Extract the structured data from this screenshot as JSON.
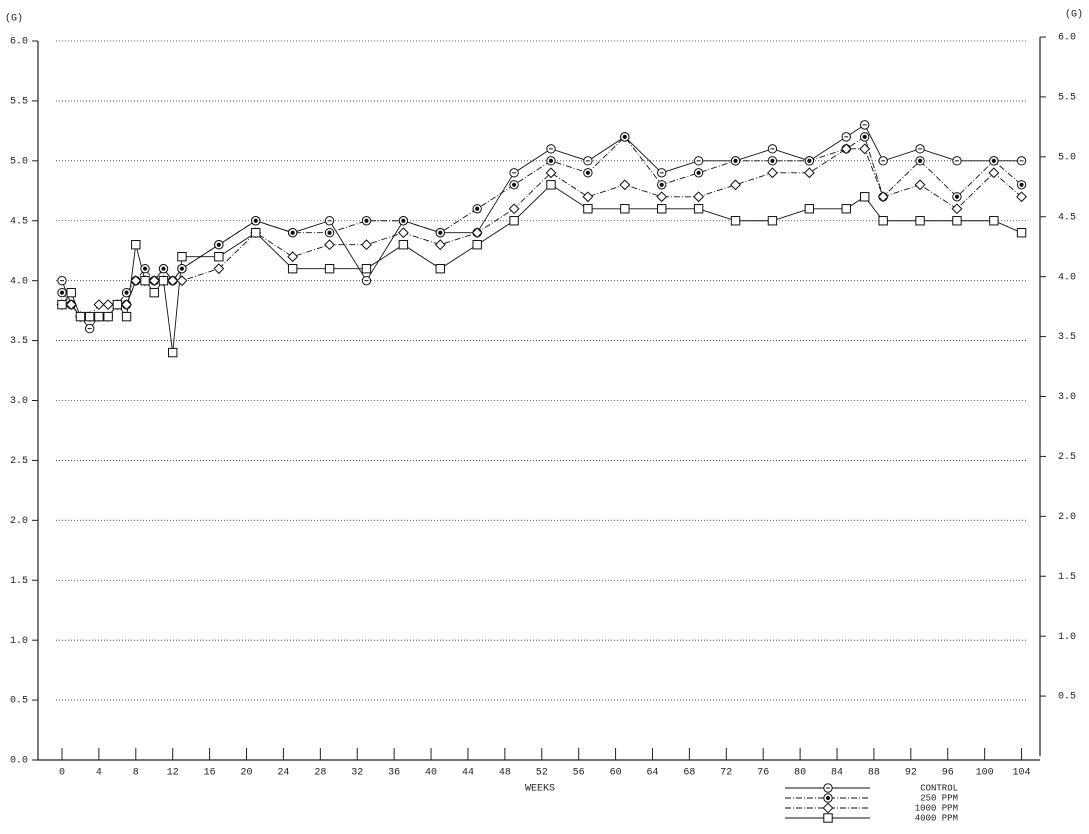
{
  "chart_data": {
    "type": "line",
    "ylabel": "(G)",
    "y2label": "(G)",
    "xlabel": "WEEKS",
    "x": [
      0,
      1,
      2,
      3,
      4,
      5,
      6,
      7,
      8,
      9,
      10,
      11,
      12,
      13,
      17,
      21,
      25,
      29,
      33,
      37,
      41,
      45,
      49,
      53,
      57,
      61,
      65,
      69,
      73,
      77,
      81,
      85,
      87,
      89,
      93,
      97,
      101,
      104
    ],
    "series": [
      {
        "name": "CONTROL",
        "color": "#111111",
        "marker": "circle-dash",
        "dash": "solid",
        "values": [
          4.0,
          3.8,
          3.7,
          3.6,
          3.7,
          3.7,
          3.8,
          3.8,
          4.0,
          4.0,
          4.0,
          4.1,
          4.0,
          4.1,
          4.3,
          4.5,
          4.4,
          4.5,
          4.0,
          4.5,
          4.4,
          4.4,
          4.9,
          5.1,
          5.0,
          5.2,
          4.9,
          5.0,
          5.0,
          5.1,
          5.0,
          5.2,
          5.3,
          5.0,
          5.1,
          5.0,
          5.0,
          5.0
        ]
      },
      {
        "name": "250 PPM",
        "color": "#111111",
        "marker": "circle-dot",
        "dash": "dashdot",
        "values": [
          3.9,
          3.8,
          3.7,
          3.7,
          3.7,
          3.7,
          3.8,
          3.9,
          4.0,
          4.1,
          4.0,
          4.1,
          4.0,
          4.1,
          4.3,
          4.5,
          4.4,
          4.4,
          4.5,
          4.5,
          4.4,
          4.6,
          4.8,
          5.0,
          4.9,
          5.2,
          4.8,
          4.9,
          5.0,
          5.0,
          5.0,
          5.1,
          5.2,
          4.7,
          5.0,
          4.7,
          5.0,
          4.8
        ]
      },
      {
        "name": "1000 PPM",
        "color": "#111111",
        "marker": "diamond",
        "dash": "dashdot",
        "values": [
          3.8,
          3.8,
          3.7,
          3.7,
          3.8,
          3.8,
          3.8,
          3.8,
          4.0,
          4.0,
          4.0,
          4.0,
          4.0,
          4.0,
          4.1,
          4.4,
          4.2,
          4.3,
          4.3,
          4.4,
          4.3,
          4.4,
          4.6,
          4.9,
          4.7,
          4.8,
          4.7,
          4.7,
          4.8,
          4.9,
          4.9,
          5.1,
          5.1,
          4.7,
          4.8,
          4.6,
          4.9,
          4.7
        ]
      },
      {
        "name": "4000 PPM",
        "color": "#111111",
        "marker": "square",
        "dash": "solid",
        "values": [
          3.8,
          3.9,
          3.7,
          3.7,
          3.7,
          3.7,
          3.8,
          3.7,
          4.3,
          4.0,
          3.9,
          4.0,
          3.4,
          4.2,
          4.2,
          4.4,
          4.1,
          4.1,
          4.1,
          4.3,
          4.1,
          4.3,
          4.5,
          4.8,
          4.6,
          4.6,
          4.6,
          4.6,
          4.5,
          4.5,
          4.6,
          4.6,
          4.7,
          4.5,
          4.5,
          4.5,
          4.5,
          4.4
        ]
      }
    ],
    "xlim": [
      -2.6,
      106
    ],
    "xticks": [
      0,
      4,
      8,
      12,
      16,
      20,
      24,
      28,
      32,
      36,
      40,
      44,
      48,
      52,
      56,
      60,
      64,
      68,
      72,
      76,
      80,
      84,
      88,
      92,
      96,
      100,
      104
    ],
    "ylim": [
      0,
      6
    ],
    "yticks": [
      {
        "value": 0,
        "label": "0.0"
      },
      0.5,
      {
        "value": 1,
        "label": "1.0"
      },
      1.5,
      {
        "value": 2,
        "label": "2.0"
      },
      2.5,
      {
        "value": 3,
        "label": "3.0"
      },
      3.5,
      {
        "value": 4,
        "label": "4.0"
      },
      4.5,
      {
        "value": 5,
        "label": "5.0"
      },
      5.5,
      {
        "value": 6,
        "label": "6.0"
      }
    ],
    "y2lim": [
      0,
      6
    ],
    "y2ticks": [
      0.5,
      {
        "value": 1,
        "label": "1.0"
      },
      1.5,
      {
        "value": 2,
        "label": "2.0"
      },
      2.5,
      {
        "value": 3,
        "label": "3.0"
      },
      3.5,
      {
        "value": 4,
        "label": "4.0"
      },
      4.5,
      {
        "value": 5,
        "label": "5.0"
      },
      5.5,
      {
        "value": 6,
        "label": "6.0"
      }
    ],
    "grid": true,
    "legend": "bottom-right"
  }
}
